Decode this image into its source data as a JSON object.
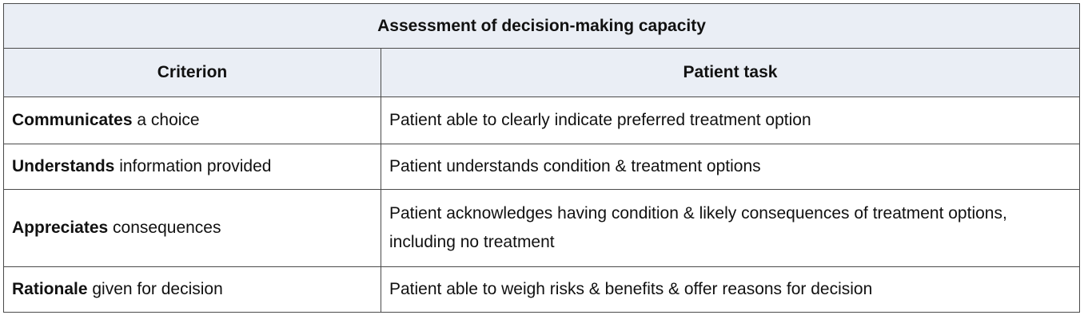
{
  "table": {
    "title": "Assessment of decision-making capacity",
    "headers": [
      "Criterion",
      "Patient task"
    ],
    "rows": [
      {
        "criterion_bold": "Communicates",
        "criterion_rest": " a choice",
        "task": "Patient able to clearly indicate preferred treatment option"
      },
      {
        "criterion_bold": "Understands",
        "criterion_rest": " information provided",
        "task": "Patient understands condition & treatment options"
      },
      {
        "criterion_bold": "Appreciates",
        "criterion_rest": " consequences",
        "task": "Patient acknowledges having condition & likely consequences of treatment options, including no treatment"
      },
      {
        "criterion_bold": "Rationale",
        "criterion_rest": " given for decision",
        "task": "Patient able to weigh risks & benefits & offer reasons for decision"
      }
    ]
  },
  "colors": {
    "header_bg": "#eaeef5",
    "border": "#4a4a4a",
    "text": "#111111"
  }
}
